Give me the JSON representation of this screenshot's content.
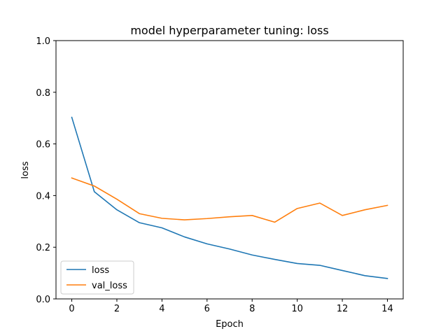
{
  "chart_data": {
    "type": "line",
    "title": "model hyperparameter tuning: loss",
    "xlabel": "Epoch",
    "ylabel": "loss",
    "xlim": [
      -0.7,
      14.7
    ],
    "ylim": [
      0,
      1.0
    ],
    "x": [
      0,
      1,
      2,
      3,
      4,
      5,
      6,
      7,
      8,
      9,
      10,
      11,
      12,
      13,
      14
    ],
    "xticks": [
      "0",
      "2",
      "4",
      "6",
      "8",
      "10",
      "12",
      "14"
    ],
    "yticks": [
      "0.0",
      "0.2",
      "0.4",
      "0.6",
      "0.8",
      "1.0"
    ],
    "grid": false,
    "legend_position": "lower-left",
    "series": [
      {
        "name": "loss",
        "color": "#1f77b4",
        "values": [
          0.703,
          0.415,
          0.345,
          0.295,
          0.275,
          0.24,
          0.213,
          0.193,
          0.17,
          0.153,
          0.137,
          0.13,
          0.11,
          0.09,
          0.079
        ]
      },
      {
        "name": "val_loss",
        "color": "#ff7f0e",
        "values": [
          0.468,
          0.437,
          0.386,
          0.33,
          0.312,
          0.306,
          0.311,
          0.318,
          0.323,
          0.297,
          0.35,
          0.371,
          0.323,
          0.345,
          0.362
        ]
      }
    ]
  }
}
